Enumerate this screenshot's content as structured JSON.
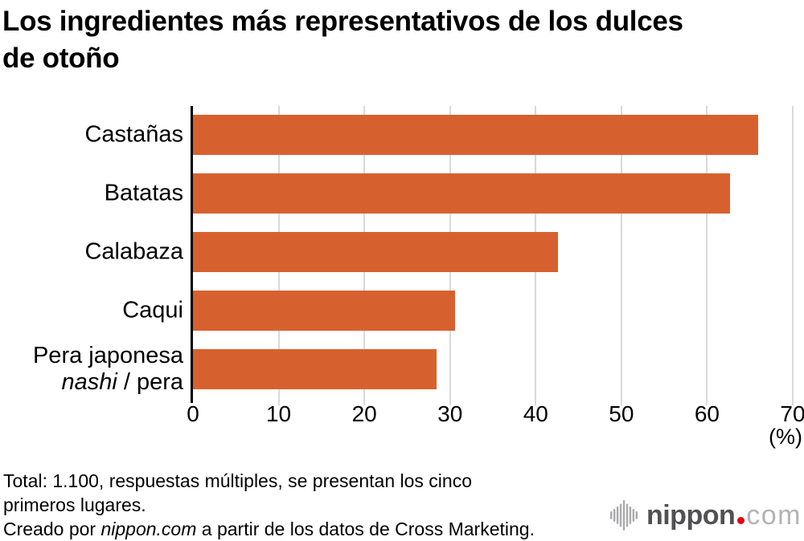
{
  "header": {
    "title_lines": [
      "Los ingredientes más representativos de los dulces",
      "de otoño"
    ]
  },
  "chart_data": {
    "type": "bar",
    "orientation": "horizontal",
    "title": "Los ingredientes más representativos de los dulces de otoño",
    "categories": [
      "Castañas",
      "Batatas",
      "Calabaza",
      "Caqui",
      "Pera japonesa nashi / pera"
    ],
    "category_label_segments": [
      [
        [
          {
            "text": "Castañas",
            "italic": false
          }
        ]
      ],
      [
        [
          {
            "text": "Batatas",
            "italic": false
          }
        ]
      ],
      [
        [
          {
            "text": "Calabaza",
            "italic": false
          }
        ]
      ],
      [
        [
          {
            "text": "Caqui",
            "italic": false
          }
        ]
      ],
      [
        [
          {
            "text": "Pera japonesa",
            "italic": false
          }
        ],
        [
          {
            "text": "nashi",
            "italic": true
          },
          {
            "text": " / pera",
            "italic": false
          }
        ]
      ]
    ],
    "values": [
      66.0,
      62.7,
      42.6,
      30.6,
      28.4
    ],
    "xlabel": "",
    "ylabel": "",
    "xlabel_unit": "(%)",
    "xlim": [
      0,
      70
    ],
    "xticks": [
      0,
      10,
      20,
      30,
      40,
      50,
      60,
      70
    ],
    "grid": "vertical-gridlines-on",
    "legend": "none"
  },
  "footer": {
    "note_line1": "Total: 1.100, respuestas múltiples, se presentan los cinco",
    "note_line2": "primeros lugares.",
    "credit_pre": "Creado por ",
    "credit_italic": "nippon.com",
    "credit_post": " a partir de los datos de Cross Marketing."
  },
  "logo": {
    "brand": "nippon",
    "tld": "com",
    "icon": "soundwave-bars-icon",
    "brand_color": "#515154",
    "dot_color": "#e60012",
    "tld_color": "#b3b3b5",
    "icon_color": "#a9a9ab"
  },
  "colors": {
    "bar": "#d7612e",
    "grid": "#d9d9d9",
    "axis": "#000000",
    "title": "#000000",
    "background": "#ffffff"
  }
}
